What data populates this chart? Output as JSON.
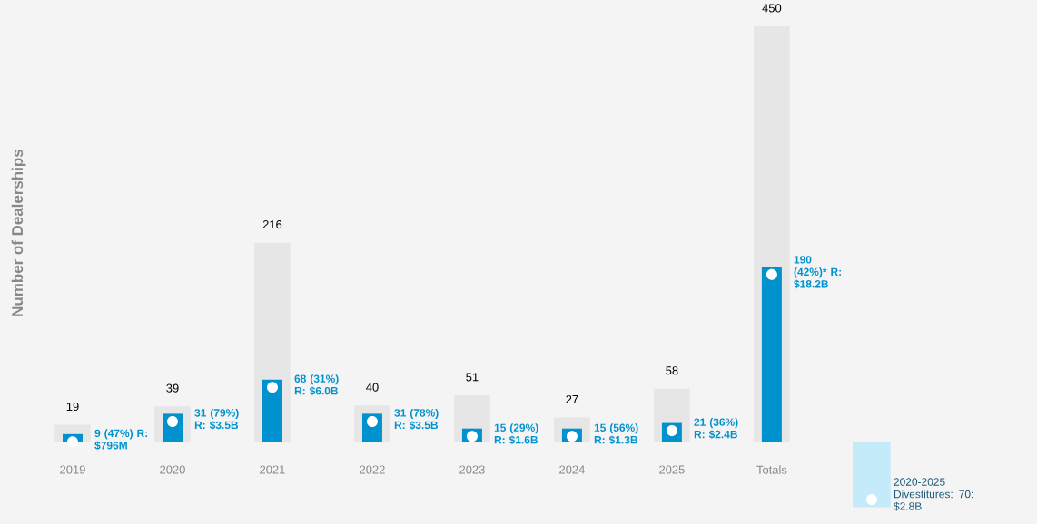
{
  "chart_data": {
    "type": "bar",
    "ylabel": "Number of Dealerships",
    "categories": [
      "2019",
      "2020",
      "2021",
      "2022",
      "2023",
      "2024",
      "2025",
      "Totals",
      null
    ],
    "ylim": [
      -70,
      450
    ],
    "tick_labels": "x",
    "series": [
      {
        "color": "#e6e6e6",
        "values": [
          19,
          39,
          216,
          40,
          51,
          27,
          58,
          450,
          null
        ],
        "data_labels": true
      },
      {
        "color": "#0092cf",
        "marker": "circle",
        "values": [
          9,
          31,
          68,
          31,
          15,
          15,
          21,
          190,
          null
        ]
      },
      {
        "color": "#c5ebfb",
        "marker": "circle",
        "values": [
          null,
          null,
          null,
          null,
          null,
          null,
          null,
          null,
          -70
        ]
      }
    ],
    "annotations": [
      {
        "text": "9 (47%) R: $796M",
        "x": "2019",
        "y": 9
      },
      {
        "text": "31 (79%) R: $3.5B",
        "x": "2020",
        "y": 31
      },
      {
        "text": "68 (31%) R: $6.0B",
        "x": "2021",
        "y": 68
      },
      {
        "text": "31 (78%) R: $3.5B",
        "x": "2022",
        "y": 31
      },
      {
        "text": "15 (29%) R: $1.6B",
        "x": "2023",
        "y": 15
      },
      {
        "text": "15 (56%) R: $1.3B",
        "x": "2024",
        "y": 15
      },
      {
        "text": "21 (36%) R: $2.4B",
        "x": "2025",
        "y": 21
      },
      {
        "text": "190 (42%)* R: $18.2B",
        "x": "Totals",
        "y": 190
      },
      "2020-2025 Divestitures: 70: $2.8B"
    ]
  }
}
